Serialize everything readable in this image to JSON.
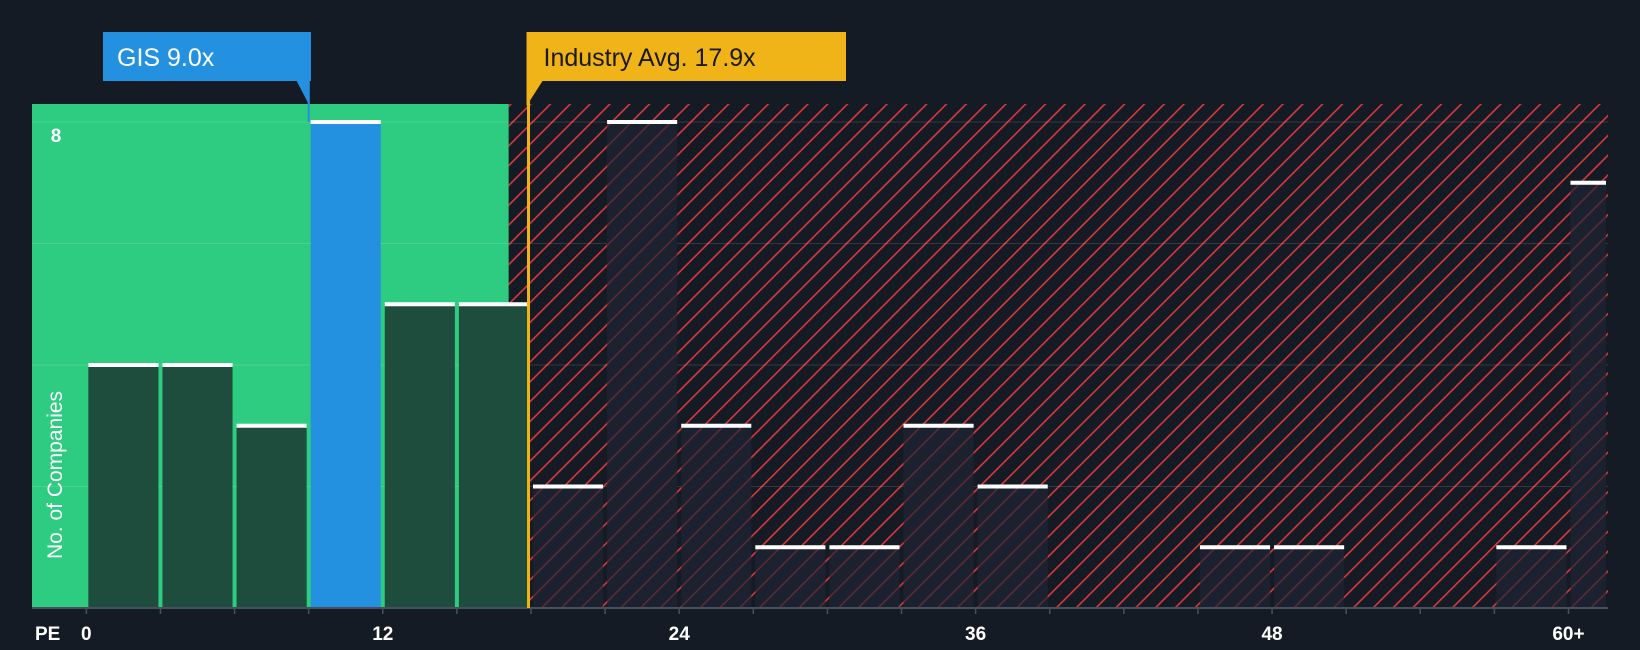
{
  "chart_data": {
    "type": "bar",
    "x_axis_label": "PE",
    "y_axis_label": "No. of Companies",
    "x_ticks": [
      "0",
      "12",
      "24",
      "36",
      "48",
      "60+"
    ],
    "x_tick_values": [
      0,
      12,
      24,
      36,
      48,
      60
    ],
    "y_ticks": [
      "8"
    ],
    "y_tick_values": [
      8
    ],
    "ylim": [
      0,
      8.3
    ],
    "xlim": [
      -2.2,
      61.6
    ],
    "bin_width": 3,
    "bins": [
      {
        "x0": 0,
        "x1": 3,
        "count": 4
      },
      {
        "x0": 3,
        "x1": 6,
        "count": 4
      },
      {
        "x0": 6,
        "x1": 9,
        "count": 3
      },
      {
        "x0": 9,
        "x1": 12,
        "count": 8,
        "highlight": true
      },
      {
        "x0": 12,
        "x1": 15,
        "count": 5
      },
      {
        "x0": 15,
        "x1": 18,
        "count": 5
      },
      {
        "x0": 18,
        "x1": 21,
        "count": 2
      },
      {
        "x0": 21,
        "x1": 24,
        "count": 8
      },
      {
        "x0": 24,
        "x1": 27,
        "count": 3
      },
      {
        "x0": 27,
        "x1": 30,
        "count": 1
      },
      {
        "x0": 30,
        "x1": 33,
        "count": 1
      },
      {
        "x0": 33,
        "x1": 36,
        "count": 3
      },
      {
        "x0": 36,
        "x1": 39,
        "count": 2
      },
      {
        "x0": 39,
        "x1": 42,
        "count": 0
      },
      {
        "x0": 42,
        "x1": 45,
        "count": 0
      },
      {
        "x0": 45,
        "x1": 48,
        "count": 1
      },
      {
        "x0": 48,
        "x1": 51,
        "count": 1
      },
      {
        "x0": 51,
        "x1": 54,
        "count": 0
      },
      {
        "x0": 54,
        "x1": 57,
        "count": 0
      },
      {
        "x0": 57,
        "x1": 60,
        "count": 1
      },
      {
        "x0": 60,
        "x1": 61.6,
        "count": 7
      }
    ],
    "company": {
      "label": "GIS 9.0x",
      "value": 9.0
    },
    "industry_avg": {
      "label": "Industry Avg. 17.9x",
      "value": 17.9
    },
    "fair_zone_end": 17.1,
    "grid": true,
    "colors": {
      "background": "#151b24",
      "fair_zone": "#2ecc80",
      "bar_fair": "#1e4d3d",
      "bar_company": "#2491e0",
      "bar_expensive": "#1c2130",
      "hatch": "#d9373b",
      "bar_cap": "#ffffff",
      "company_callout": "#2491e0",
      "industry_callout": "#f0b418",
      "industry_callout_text": "#1a1a1a"
    }
  }
}
